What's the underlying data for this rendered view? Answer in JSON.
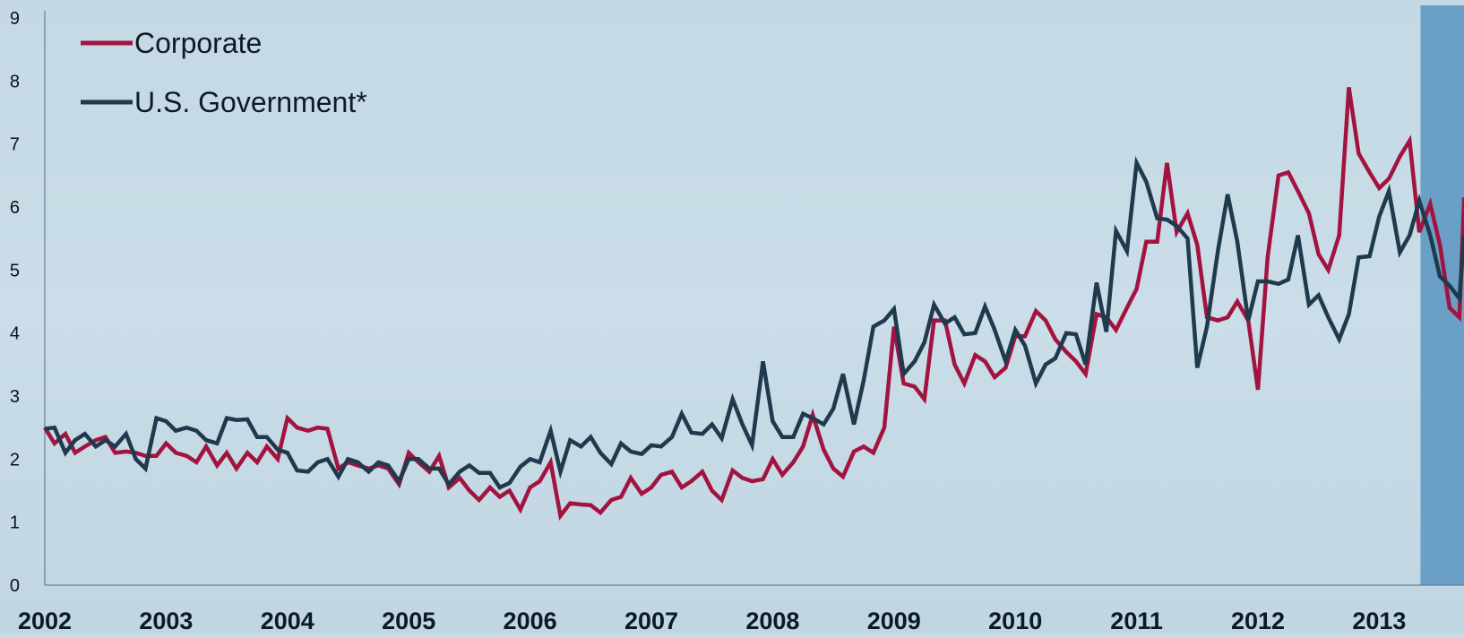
{
  "colors": {
    "background": "#c6dbe6",
    "corporate": "#a3133f",
    "government": "#1f3a4d",
    "highlight_band": "#6a9fc6"
  },
  "chart_data": {
    "type": "line",
    "title": "",
    "xlabel": "",
    "ylabel": "",
    "ylim": [
      0,
      9
    ],
    "yticks": [
      "0",
      "1",
      "2",
      "3",
      "4",
      "5",
      "6",
      "7",
      "8",
      "9"
    ],
    "xlim": [
      2002,
      2013.7
    ],
    "xtick_labels": [
      "2002",
      "2003",
      "2004",
      "2005",
      "2006",
      "2007",
      "2008",
      "2009",
      "2010",
      "2011",
      "2012",
      "2013"
    ],
    "grid": false,
    "legend_position": "top-left",
    "highlight_band": {
      "x_start": 2013.34,
      "x_end": 2013.7
    },
    "series": [
      {
        "name": "Corporate",
        "color": "#a3133f",
        "points": [
          [
            2002.0,
            2.5
          ],
          [
            2002.08,
            2.25
          ],
          [
            2002.17,
            2.4
          ],
          [
            2002.25,
            2.1
          ],
          [
            2002.33,
            2.2
          ],
          [
            2002.42,
            2.3
          ],
          [
            2002.5,
            2.35
          ],
          [
            2002.58,
            2.1
          ],
          [
            2002.67,
            2.12
          ],
          [
            2002.75,
            2.1
          ],
          [
            2002.83,
            2.05
          ],
          [
            2002.92,
            2.05
          ],
          [
            2003.0,
            2.25
          ],
          [
            2003.08,
            2.1
          ],
          [
            2003.17,
            2.05
          ],
          [
            2003.25,
            1.95
          ],
          [
            2003.33,
            2.2
          ],
          [
            2003.42,
            1.9
          ],
          [
            2003.5,
            2.1
          ],
          [
            2003.58,
            1.85
          ],
          [
            2003.67,
            2.1
          ],
          [
            2003.75,
            1.95
          ],
          [
            2003.83,
            2.2
          ],
          [
            2003.92,
            2.0
          ],
          [
            2004.0,
            2.65
          ],
          [
            2004.08,
            2.5
          ],
          [
            2004.17,
            2.45
          ],
          [
            2004.25,
            2.5
          ],
          [
            2004.33,
            2.48
          ],
          [
            2004.42,
            1.85
          ],
          [
            2004.5,
            1.95
          ],
          [
            2004.58,
            1.9
          ],
          [
            2004.67,
            1.85
          ],
          [
            2004.75,
            1.9
          ],
          [
            2004.83,
            1.85
          ],
          [
            2004.92,
            1.6
          ],
          [
            2005.0,
            2.1
          ],
          [
            2005.08,
            1.95
          ],
          [
            2005.17,
            1.8
          ],
          [
            2005.25,
            2.05
          ],
          [
            2005.33,
            1.55
          ],
          [
            2005.42,
            1.7
          ],
          [
            2005.5,
            1.5
          ],
          [
            2005.58,
            1.35
          ],
          [
            2005.67,
            1.55
          ],
          [
            2005.75,
            1.4
          ],
          [
            2005.83,
            1.5
          ],
          [
            2005.92,
            1.2
          ],
          [
            2006.0,
            1.55
          ],
          [
            2006.08,
            1.65
          ],
          [
            2006.17,
            1.95
          ],
          [
            2006.25,
            1.1
          ],
          [
            2006.33,
            1.3
          ],
          [
            2006.42,
            1.28
          ],
          [
            2006.5,
            1.27
          ],
          [
            2006.58,
            1.15
          ],
          [
            2006.67,
            1.35
          ],
          [
            2006.75,
            1.4
          ],
          [
            2006.83,
            1.7
          ],
          [
            2006.92,
            1.45
          ],
          [
            2007.0,
            1.55
          ],
          [
            2007.08,
            1.75
          ],
          [
            2007.17,
            1.8
          ],
          [
            2007.25,
            1.55
          ],
          [
            2007.33,
            1.65
          ],
          [
            2007.42,
            1.8
          ],
          [
            2007.5,
            1.5
          ],
          [
            2007.58,
            1.35
          ],
          [
            2007.67,
            1.82
          ],
          [
            2007.75,
            1.7
          ],
          [
            2007.83,
            1.65
          ],
          [
            2007.92,
            1.68
          ],
          [
            2008.0,
            2.0
          ],
          [
            2008.08,
            1.75
          ],
          [
            2008.17,
            1.95
          ],
          [
            2008.25,
            2.2
          ],
          [
            2008.33,
            2.7
          ],
          [
            2008.42,
            2.15
          ],
          [
            2008.5,
            1.85
          ],
          [
            2008.58,
            1.72
          ],
          [
            2008.67,
            2.12
          ],
          [
            2008.75,
            2.2
          ],
          [
            2008.83,
            2.1
          ],
          [
            2008.92,
            2.5
          ],
          [
            2009.0,
            4.1
          ],
          [
            2009.08,
            3.2
          ],
          [
            2009.17,
            3.15
          ],
          [
            2009.25,
            2.95
          ],
          [
            2009.33,
            4.2
          ],
          [
            2009.42,
            4.2
          ],
          [
            2009.5,
            3.5
          ],
          [
            2009.58,
            3.2
          ],
          [
            2009.67,
            3.65
          ],
          [
            2009.75,
            3.55
          ],
          [
            2009.83,
            3.3
          ],
          [
            2009.92,
            3.45
          ],
          [
            2010.0,
            3.95
          ],
          [
            2010.08,
            3.95
          ],
          [
            2010.17,
            4.35
          ],
          [
            2010.25,
            4.2
          ],
          [
            2010.33,
            3.9
          ],
          [
            2010.42,
            3.7
          ],
          [
            2010.5,
            3.55
          ],
          [
            2010.58,
            3.35
          ],
          [
            2010.67,
            4.3
          ],
          [
            2010.75,
            4.25
          ],
          [
            2010.83,
            4.05
          ],
          [
            2010.92,
            4.4
          ],
          [
            2011.0,
            4.7
          ],
          [
            2011.08,
            5.45
          ],
          [
            2011.17,
            5.45
          ],
          [
            2011.25,
            6.7
          ],
          [
            2011.33,
            5.6
          ],
          [
            2011.42,
            5.9
          ],
          [
            2011.5,
            5.4
          ],
          [
            2011.58,
            4.25
          ],
          [
            2011.67,
            4.2
          ],
          [
            2011.75,
            4.25
          ],
          [
            2011.83,
            4.5
          ],
          [
            2011.92,
            4.2
          ],
          [
            2012.0,
            3.1
          ],
          [
            2012.08,
            5.2
          ],
          [
            2012.17,
            6.5
          ],
          [
            2012.25,
            6.55
          ],
          [
            2012.33,
            6.25
          ],
          [
            2012.42,
            5.9
          ],
          [
            2012.5,
            5.25
          ],
          [
            2012.58,
            5.0
          ],
          [
            2012.67,
            5.55
          ],
          [
            2012.75,
            7.9
          ],
          [
            2012.83,
            6.85
          ],
          [
            2012.92,
            6.55
          ],
          [
            2013.0,
            6.3
          ],
          [
            2013.08,
            6.45
          ],
          [
            2013.17,
            6.8
          ],
          [
            2013.25,
            7.05
          ],
          [
            2013.33,
            5.6
          ],
          [
            2013.42,
            6.05
          ],
          [
            2013.5,
            5.4
          ],
          [
            2013.58,
            4.4
          ],
          [
            2013.66,
            4.25
          ],
          [
            2013.7,
            6.15
          ]
        ]
      },
      {
        "name": "U.S. Government*",
        "color": "#1f3a4d",
        "points": [
          [
            2002.0,
            2.48
          ],
          [
            2002.08,
            2.5
          ],
          [
            2002.17,
            2.1
          ],
          [
            2002.25,
            2.3
          ],
          [
            2002.33,
            2.4
          ],
          [
            2002.42,
            2.2
          ],
          [
            2002.5,
            2.3
          ],
          [
            2002.58,
            2.2
          ],
          [
            2002.67,
            2.4
          ],
          [
            2002.75,
            2.0
          ],
          [
            2002.83,
            1.85
          ],
          [
            2002.92,
            2.65
          ],
          [
            2003.0,
            2.6
          ],
          [
            2003.08,
            2.45
          ],
          [
            2003.17,
            2.5
          ],
          [
            2003.25,
            2.45
          ],
          [
            2003.33,
            2.3
          ],
          [
            2003.42,
            2.25
          ],
          [
            2003.5,
            2.65
          ],
          [
            2003.58,
            2.62
          ],
          [
            2003.67,
            2.63
          ],
          [
            2003.75,
            2.35
          ],
          [
            2003.83,
            2.35
          ],
          [
            2003.92,
            2.15
          ],
          [
            2004.0,
            2.1
          ],
          [
            2004.08,
            1.82
          ],
          [
            2004.17,
            1.8
          ],
          [
            2004.25,
            1.95
          ],
          [
            2004.33,
            2.0
          ],
          [
            2004.42,
            1.72
          ],
          [
            2004.5,
            2.0
          ],
          [
            2004.58,
            1.95
          ],
          [
            2004.67,
            1.8
          ],
          [
            2004.75,
            1.95
          ],
          [
            2004.83,
            1.9
          ],
          [
            2004.92,
            1.65
          ],
          [
            2005.0,
            2.0
          ],
          [
            2005.08,
            2.0
          ],
          [
            2005.17,
            1.85
          ],
          [
            2005.25,
            1.85
          ],
          [
            2005.33,
            1.6
          ],
          [
            2005.42,
            1.8
          ],
          [
            2005.5,
            1.9
          ],
          [
            2005.58,
            1.78
          ],
          [
            2005.67,
            1.78
          ],
          [
            2005.75,
            1.55
          ],
          [
            2005.83,
            1.62
          ],
          [
            2005.92,
            1.88
          ],
          [
            2006.0,
            2.0
          ],
          [
            2006.08,
            1.95
          ],
          [
            2006.17,
            2.45
          ],
          [
            2006.25,
            1.8
          ],
          [
            2006.33,
            2.3
          ],
          [
            2006.42,
            2.2
          ],
          [
            2006.5,
            2.35
          ],
          [
            2006.58,
            2.1
          ],
          [
            2006.67,
            1.92
          ],
          [
            2006.75,
            2.25
          ],
          [
            2006.83,
            2.12
          ],
          [
            2006.92,
            2.08
          ],
          [
            2007.0,
            2.22
          ],
          [
            2007.08,
            2.2
          ],
          [
            2007.17,
            2.35
          ],
          [
            2007.25,
            2.72
          ],
          [
            2007.33,
            2.42
          ],
          [
            2007.42,
            2.4
          ],
          [
            2007.5,
            2.55
          ],
          [
            2007.58,
            2.33
          ],
          [
            2007.67,
            2.95
          ],
          [
            2007.75,
            2.55
          ],
          [
            2007.83,
            2.22
          ],
          [
            2007.92,
            3.55
          ],
          [
            2008.0,
            2.6
          ],
          [
            2008.08,
            2.35
          ],
          [
            2008.17,
            2.35
          ],
          [
            2008.25,
            2.72
          ],
          [
            2008.33,
            2.65
          ],
          [
            2008.42,
            2.55
          ],
          [
            2008.5,
            2.8
          ],
          [
            2008.58,
            3.35
          ],
          [
            2008.67,
            2.55
          ],
          [
            2008.75,
            3.25
          ],
          [
            2008.83,
            4.1
          ],
          [
            2008.92,
            4.2
          ],
          [
            2009.0,
            4.38
          ],
          [
            2009.08,
            3.35
          ],
          [
            2009.17,
            3.55
          ],
          [
            2009.25,
            3.85
          ],
          [
            2009.33,
            4.45
          ],
          [
            2009.42,
            4.15
          ],
          [
            2009.5,
            4.25
          ],
          [
            2009.58,
            3.98
          ],
          [
            2009.67,
            4.0
          ],
          [
            2009.75,
            4.42
          ],
          [
            2009.83,
            4.05
          ],
          [
            2009.92,
            3.55
          ],
          [
            2010.0,
            4.05
          ],
          [
            2010.08,
            3.8
          ],
          [
            2010.17,
            3.2
          ],
          [
            2010.25,
            3.5
          ],
          [
            2010.33,
            3.6
          ],
          [
            2010.42,
            4.0
          ],
          [
            2010.5,
            3.98
          ],
          [
            2010.58,
            3.5
          ],
          [
            2010.67,
            4.8
          ],
          [
            2010.75,
            4.02
          ],
          [
            2010.83,
            5.62
          ],
          [
            2010.92,
            5.3
          ],
          [
            2011.0,
            6.7
          ],
          [
            2011.08,
            6.4
          ],
          [
            2011.17,
            5.82
          ],
          [
            2011.25,
            5.8
          ],
          [
            2011.33,
            5.7
          ],
          [
            2011.42,
            5.5
          ],
          [
            2011.5,
            3.45
          ],
          [
            2011.58,
            4.1
          ],
          [
            2011.67,
            5.3
          ],
          [
            2011.75,
            6.2
          ],
          [
            2011.83,
            5.45
          ],
          [
            2011.92,
            4.2
          ],
          [
            2012.0,
            4.82
          ],
          [
            2012.08,
            4.82
          ],
          [
            2012.17,
            4.78
          ],
          [
            2012.25,
            4.85
          ],
          [
            2012.33,
            5.55
          ],
          [
            2012.42,
            4.45
          ],
          [
            2012.5,
            4.6
          ],
          [
            2012.58,
            4.25
          ],
          [
            2012.67,
            3.9
          ],
          [
            2012.75,
            4.3
          ],
          [
            2012.83,
            5.2
          ],
          [
            2012.92,
            5.22
          ],
          [
            2013.0,
            5.85
          ],
          [
            2013.08,
            6.25
          ],
          [
            2013.17,
            5.28
          ],
          [
            2013.25,
            5.55
          ],
          [
            2013.33,
            6.1
          ],
          [
            2013.42,
            5.55
          ],
          [
            2013.5,
            4.9
          ],
          [
            2013.58,
            4.75
          ],
          [
            2013.66,
            4.55
          ],
          [
            2013.7,
            5.55
          ]
        ]
      }
    ]
  }
}
